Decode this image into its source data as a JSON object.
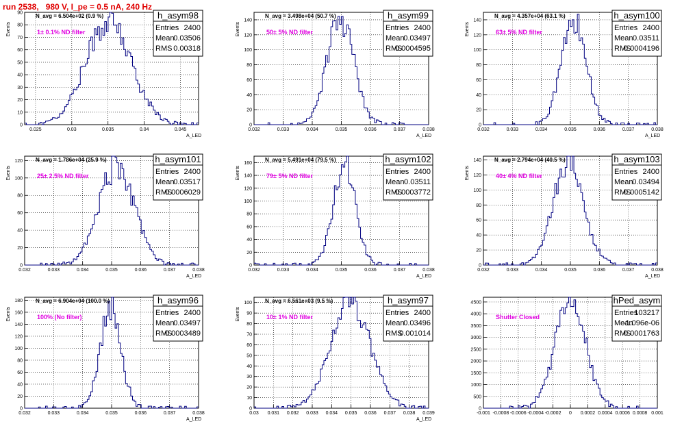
{
  "header": {
    "title": "run 2538,   980 V, I_pe = 0.5 nA, 240 Hz"
  },
  "colors": {
    "title": "#e00000",
    "filter_label": "#e000e0",
    "histogram_line": "#000080",
    "grid": "#000000"
  },
  "chart_data": [
    {
      "type": "histogram",
      "name": "h_asym98",
      "ylabel": "Events",
      "xlabel": "A_LED",
      "navg": "N_avg = 6.504e+02 (0.9 %)",
      "filter": "1± 0.1% ND filter",
      "stats": {
        "entries": "2400",
        "mean": "0.03506",
        "rms": "0.00318"
      },
      "xlim": [
        0.0235,
        0.0475
      ],
      "ylim": [
        0,
        90
      ],
      "xticks": [
        0.025,
        0.03,
        0.035,
        0.04,
        0.045
      ],
      "xtick_labels": [
        "0.025",
        "0.03",
        "0.035",
        "0.04",
        "0.045"
      ],
      "yticks": [
        0,
        10,
        20,
        30,
        40,
        50,
        60,
        70,
        80,
        90
      ],
      "ytick_labels": [
        "0",
        "10",
        "20",
        "30",
        "40",
        "50",
        "60",
        "70",
        "80",
        "90"
      ],
      "peak": 82,
      "grid": true,
      "legend": "top-right"
    },
    {
      "type": "histogram",
      "name": "h_asym99",
      "ylabel": "Events",
      "xlabel": "A_LED",
      "navg": "N_avg = 3.498e+04 (50.7 %)",
      "filter": "50± 5% ND filter",
      "stats": {
        "entries": "2400",
        "mean": "0.03497",
        "rms": "0.0004595"
      },
      "xlim": [
        0.032,
        0.038
      ],
      "ylim": [
        0,
        150
      ],
      "xticks": [
        0.032,
        0.033,
        0.034,
        0.035,
        0.036,
        0.037,
        0.038
      ],
      "xtick_labels": [
        "0.032",
        "0.033",
        "0.034",
        "0.035",
        "0.036",
        "0.037",
        "0.038"
      ],
      "yticks": [
        0,
        20,
        40,
        60,
        80,
        100,
        120,
        140
      ],
      "ytick_labels": [
        "0",
        "20",
        "40",
        "60",
        "80",
        "100",
        "120",
        "140"
      ],
      "peak": 143,
      "grid": true,
      "legend": "top-right"
    },
    {
      "type": "histogram",
      "name": "h_asym100",
      "ylabel": "Events",
      "xlabel": "A_LED",
      "navg": "N_avg = 4.357e+04 (63.1 %)",
      "filter": "63± 5% ND filter",
      "stats": {
        "entries": "2400",
        "mean": "0.03511",
        "rms": "0.0004196"
      },
      "xlim": [
        0.032,
        0.038
      ],
      "ylim": [
        0,
        150
      ],
      "xticks": [
        0.032,
        0.033,
        0.034,
        0.035,
        0.036,
        0.037,
        0.038
      ],
      "xtick_labels": [
        "0.032",
        "0.033",
        "0.034",
        "0.035",
        "0.036",
        "0.037",
        "0.038"
      ],
      "yticks": [
        0,
        20,
        40,
        60,
        80,
        100,
        120,
        140
      ],
      "ytick_labels": [
        "0",
        "20",
        "40",
        "60",
        "80",
        "100",
        "120",
        "140"
      ],
      "peak": 143,
      "grid": true,
      "legend": "top-right"
    },
    {
      "type": "histogram",
      "name": "h_asym101",
      "ylabel": "Events",
      "xlabel": "A_LED",
      "navg": "N_avg = 1.786e+04 (25.9 %)",
      "filter": "25± 2.5% ND filter",
      "stats": {
        "entries": "2400",
        "mean": "0.03517",
        "rms": "0.0006029"
      },
      "xlim": [
        0.032,
        0.038
      ],
      "ylim": [
        0,
        125
      ],
      "xticks": [
        0.032,
        0.033,
        0.034,
        0.035,
        0.036,
        0.037,
        0.038
      ],
      "xtick_labels": [
        "0.032",
        "0.033",
        "0.034",
        "0.035",
        "0.036",
        "0.037",
        "0.038"
      ],
      "yticks": [
        0,
        20,
        40,
        60,
        80,
        100,
        120
      ],
      "ytick_labels": [
        "0",
        "20",
        "40",
        "60",
        "80",
        "100",
        "120"
      ],
      "peak": 115,
      "grid": true,
      "legend": "top-right"
    },
    {
      "type": "histogram",
      "name": "h_asym102",
      "ylabel": "Events",
      "xlabel": "A_LED",
      "navg": "N_avg = 5.491e+04 (79.5 %)",
      "filter": "79± 5% ND filter",
      "stats": {
        "entries": "2400",
        "mean": "0.03511",
        "rms": "0.0003772"
      },
      "xlim": [
        0.032,
        0.038
      ],
      "ylim": [
        0,
        170
      ],
      "xticks": [
        0.032,
        0.033,
        0.034,
        0.035,
        0.036,
        0.037,
        0.038
      ],
      "xtick_labels": [
        "0.032",
        "0.033",
        "0.034",
        "0.035",
        "0.036",
        "0.037",
        "0.038"
      ],
      "yticks": [
        0,
        20,
        40,
        60,
        80,
        100,
        120,
        140,
        160
      ],
      "ytick_labels": [
        "0",
        "20",
        "40",
        "60",
        "80",
        "100",
        "120",
        "140",
        "160"
      ],
      "peak": 160,
      "grid": true,
      "legend": "top-right"
    },
    {
      "type": "histogram",
      "name": "h_asym103",
      "ylabel": "Events",
      "xlabel": "A_LED",
      "navg": "N_avg = 2.794e+04 (40.5 %)",
      "filter": "40± 4% ND filter",
      "stats": {
        "entries": "2400",
        "mean": "0.03494",
        "rms": "0.0005142"
      },
      "xlim": [
        0.032,
        0.038
      ],
      "ylim": [
        0,
        145
      ],
      "xticks": [
        0.032,
        0.033,
        0.034,
        0.035,
        0.036,
        0.037,
        0.038
      ],
      "xtick_labels": [
        "0.032",
        "0.033",
        "0.034",
        "0.035",
        "0.036",
        "0.037",
        "0.038"
      ],
      "yticks": [
        0,
        20,
        40,
        60,
        80,
        100,
        120,
        140
      ],
      "ytick_labels": [
        "0",
        "20",
        "40",
        "60",
        "80",
        "100",
        "120",
        "140"
      ],
      "peak": 140,
      "grid": true,
      "legend": "top-right"
    },
    {
      "type": "histogram",
      "name": "h_asym96",
      "ylabel": "Events",
      "xlabel": "A_LED",
      "navg": "N_avg = 6.904e+04 (100.0 %)",
      "filter": "100% (No filter)",
      "stats": {
        "entries": "2400",
        "mean": "0.03497",
        "rms": "0.0003489"
      },
      "xlim": [
        0.032,
        0.038
      ],
      "ylim": [
        0,
        185
      ],
      "xticks": [
        0.032,
        0.033,
        0.034,
        0.035,
        0.036,
        0.037,
        0.038
      ],
      "xtick_labels": [
        "0.032",
        "0.033",
        "0.034",
        "0.035",
        "0.036",
        "0.037",
        "0.038"
      ],
      "yticks": [
        0,
        20,
        40,
        60,
        80,
        100,
        120,
        140,
        160,
        180
      ],
      "ytick_labels": [
        "0",
        "20",
        "40",
        "60",
        "80",
        "100",
        "120",
        "140",
        "160",
        "180"
      ],
      "peak": 172,
      "grid": true,
      "legend": "top-right"
    },
    {
      "type": "histogram",
      "name": "h_asym97",
      "ylabel": "Events",
      "xlabel": "A_LED",
      "navg": "N_avg = 6.561e+03 (9.5 %)",
      "filter": "10± 1% ND filter",
      "stats": {
        "entries": "2400",
        "mean": "0.03496",
        "rms": "0.001014"
      },
      "xlim": [
        0.03,
        0.039
      ],
      "ylim": [
        0,
        105
      ],
      "xticks": [
        0.03,
        0.031,
        0.032,
        0.033,
        0.034,
        0.035,
        0.036,
        0.037,
        0.038,
        0.039
      ],
      "xtick_labels": [
        "0.03",
        "0.031",
        "0.032",
        "0.033",
        "0.034",
        "0.035",
        "0.036",
        "0.037",
        "0.038",
        "0.039"
      ],
      "yticks": [
        0,
        10,
        20,
        30,
        40,
        50,
        60,
        70,
        80,
        90,
        100
      ],
      "ytick_labels": [
        "0",
        "10",
        "20",
        "30",
        "40",
        "50",
        "60",
        "70",
        "80",
        "90",
        "100"
      ],
      "peak": 100,
      "grid": true,
      "legend": "top-right"
    },
    {
      "type": "histogram",
      "name": "hPed_asym",
      "ylabel": "",
      "xlabel": "",
      "navg": "",
      "filter": "Shutter Closed",
      "stats": {
        "entries": "103217",
        "mean": "-1.096e-06",
        "rms": "0.0001763"
      },
      "xlim": [
        -0.001,
        0.001
      ],
      "ylim": [
        0,
        4700
      ],
      "xticks": [
        -0.001,
        -0.0008,
        -0.0006,
        -0.0004,
        -0.0002,
        0,
        0.0002,
        0.0004,
        0.0006,
        0.0008,
        0.001
      ],
      "xtick_labels": [
        "-0.001",
        "-0.0008",
        "-0.0006",
        "-0.0004",
        "-0.0002",
        "0",
        "0.0002",
        "0.0004",
        "0.0006",
        "0.0008",
        "0.001"
      ],
      "yticks": [
        0,
        500,
        1000,
        1500,
        2000,
        2500,
        3000,
        3500,
        4000,
        4500
      ],
      "ytick_labels": [
        "0",
        "500",
        "1000",
        "1500",
        "2000",
        "2500",
        "3000",
        "3500",
        "4000",
        "4500"
      ],
      "peak": 4600,
      "grid": true,
      "legend": "top-right"
    }
  ]
}
